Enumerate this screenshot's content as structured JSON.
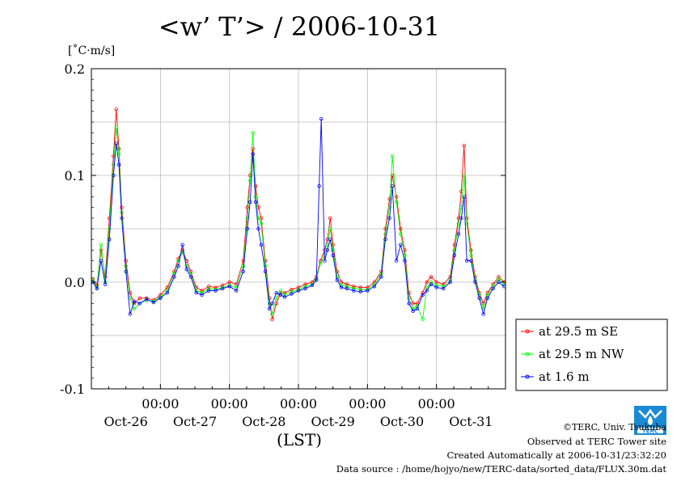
{
  "chart_data": {
    "type": "line",
    "title": "<w’ T’> / 2006-10-31",
    "unit": "[˚C·m/s]",
    "xlabel": "(LST)",
    "ylim": [
      -0.1,
      0.2
    ],
    "y_ticks": [
      -0.1,
      0.0,
      0.1,
      0.2
    ],
    "y_tick_labels": [
      "-0.1",
      "0.0",
      "0.1",
      "0.2"
    ],
    "xlim": [
      0,
      6
    ],
    "x_time_ticks": [
      1.0,
      2.0,
      3.0,
      4.0,
      5.0
    ],
    "x_time_tick_label": "00:00",
    "date_labels": [
      {
        "x": 0.5,
        "label": "Oct-26"
      },
      {
        "x": 1.5,
        "label": "Oct-27"
      },
      {
        "x": 2.5,
        "label": "Oct-28"
      },
      {
        "x": 3.5,
        "label": "Oct-29"
      },
      {
        "x": 4.5,
        "label": "Oct-30"
      },
      {
        "x": 5.5,
        "label": "Oct-31"
      }
    ],
    "grid": true,
    "legend_position": "right",
    "series": [
      {
        "name": "at 29.5 m SE",
        "color": "#ff0000",
        "points": [
          [
            0.02,
            0.003
          ],
          [
            0.08,
            -0.003
          ],
          [
            0.14,
            0.03
          ],
          [
            0.2,
            0.005
          ],
          [
            0.26,
            0.06
          ],
          [
            0.32,
            0.118
          ],
          [
            0.36,
            0.162
          ],
          [
            0.4,
            0.125
          ],
          [
            0.44,
            0.07
          ],
          [
            0.5,
            0.02
          ],
          [
            0.56,
            -0.01
          ],
          [
            0.62,
            -0.02
          ],
          [
            0.7,
            -0.015
          ],
          [
            0.8,
            -0.015
          ],
          [
            0.9,
            -0.017
          ],
          [
            1.0,
            -0.012
          ],
          [
            1.1,
            -0.005
          ],
          [
            1.2,
            0.01
          ],
          [
            1.26,
            0.022
          ],
          [
            1.32,
            0.03
          ],
          [
            1.38,
            0.02
          ],
          [
            1.44,
            0.01
          ],
          [
            1.52,
            -0.005
          ],
          [
            1.6,
            -0.008
          ],
          [
            1.7,
            -0.004
          ],
          [
            1.8,
            -0.005
          ],
          [
            1.9,
            -0.003
          ],
          [
            2.0,
            0.0
          ],
          [
            2.1,
            -0.002
          ],
          [
            2.2,
            0.02
          ],
          [
            2.26,
            0.07
          ],
          [
            2.3,
            0.1
          ],
          [
            2.34,
            0.125
          ],
          [
            2.38,
            0.09
          ],
          [
            2.42,
            0.07
          ],
          [
            2.46,
            0.06
          ],
          [
            2.52,
            0.02
          ],
          [
            2.58,
            -0.015
          ],
          [
            2.62,
            -0.035
          ],
          [
            2.68,
            -0.02
          ],
          [
            2.74,
            -0.01
          ],
          [
            2.8,
            -0.01
          ],
          [
            2.9,
            -0.007
          ],
          [
            3.0,
            -0.005
          ],
          [
            3.1,
            -0.002
          ],
          [
            3.2,
            0.0
          ],
          [
            3.26,
            0.005
          ],
          [
            3.32,
            0.02
          ],
          [
            3.38,
            0.03
          ],
          [
            3.42,
            0.04
          ],
          [
            3.46,
            0.06
          ],
          [
            3.5,
            0.035
          ],
          [
            3.56,
            0.01
          ],
          [
            3.62,
            0.0
          ],
          [
            3.7,
            -0.002
          ],
          [
            3.8,
            -0.004
          ],
          [
            3.9,
            -0.005
          ],
          [
            4.0,
            -0.005
          ],
          [
            4.1,
            0.0
          ],
          [
            4.2,
            0.01
          ],
          [
            4.26,
            0.05
          ],
          [
            4.32,
            0.078
          ],
          [
            4.36,
            0.1
          ],
          [
            4.42,
            0.08
          ],
          [
            4.48,
            0.05
          ],
          [
            4.54,
            0.03
          ],
          [
            4.6,
            -0.01
          ],
          [
            4.66,
            -0.02
          ],
          [
            4.72,
            -0.02
          ],
          [
            4.8,
            -0.01
          ],
          [
            4.86,
            0.0
          ],
          [
            4.92,
            0.005
          ],
          [
            5.0,
            0.0
          ],
          [
            5.1,
            -0.002
          ],
          [
            5.2,
            0.005
          ],
          [
            5.26,
            0.035
          ],
          [
            5.32,
            0.06
          ],
          [
            5.36,
            0.085
          ],
          [
            5.4,
            0.128
          ],
          [
            5.44,
            0.06
          ],
          [
            5.5,
            0.03
          ],
          [
            5.56,
            0.005
          ],
          [
            5.62,
            -0.01
          ],
          [
            5.68,
            -0.02
          ],
          [
            5.74,
            -0.01
          ],
          [
            5.82,
            -0.002
          ],
          [
            5.9,
            0.005
          ],
          [
            5.98,
            0.0
          ]
        ]
      },
      {
        "name": "at 29.5 m NW",
        "color": "#00ff00",
        "points": [
          [
            0.02,
            0.002
          ],
          [
            0.08,
            -0.005
          ],
          [
            0.14,
            0.035
          ],
          [
            0.2,
            0.0
          ],
          [
            0.26,
            0.05
          ],
          [
            0.32,
            0.11
          ],
          [
            0.36,
            0.145
          ],
          [
            0.4,
            0.12
          ],
          [
            0.44,
            0.065
          ],
          [
            0.5,
            0.015
          ],
          [
            0.56,
            -0.015
          ],
          [
            0.62,
            -0.025
          ],
          [
            0.7,
            -0.02
          ],
          [
            0.8,
            -0.017
          ],
          [
            0.9,
            -0.018
          ],
          [
            1.0,
            -0.014
          ],
          [
            1.1,
            -0.008
          ],
          [
            1.2,
            0.008
          ],
          [
            1.26,
            0.02
          ],
          [
            1.32,
            0.028
          ],
          [
            1.38,
            0.015
          ],
          [
            1.44,
            0.008
          ],
          [
            1.52,
            -0.008
          ],
          [
            1.6,
            -0.01
          ],
          [
            1.7,
            -0.006
          ],
          [
            1.8,
            -0.007
          ],
          [
            1.9,
            -0.005
          ],
          [
            2.0,
            -0.003
          ],
          [
            2.1,
            -0.005
          ],
          [
            2.2,
            0.015
          ],
          [
            2.26,
            0.06
          ],
          [
            2.3,
            0.095
          ],
          [
            2.34,
            0.14
          ],
          [
            2.38,
            0.08
          ],
          [
            2.42,
            0.06
          ],
          [
            2.46,
            0.055
          ],
          [
            2.52,
            0.015
          ],
          [
            2.58,
            -0.02
          ],
          [
            2.62,
            -0.03
          ],
          [
            2.68,
            -0.015
          ],
          [
            2.74,
            -0.008
          ],
          [
            2.8,
            -0.012
          ],
          [
            2.9,
            -0.009
          ],
          [
            3.0,
            -0.007
          ],
          [
            3.1,
            -0.004
          ],
          [
            3.2,
            -0.002
          ],
          [
            3.26,
            0.003
          ],
          [
            3.32,
            0.018
          ],
          [
            3.38,
            0.025
          ],
          [
            3.42,
            0.035
          ],
          [
            3.46,
            0.05
          ],
          [
            3.5,
            0.03
          ],
          [
            3.56,
            0.005
          ],
          [
            3.62,
            -0.003
          ],
          [
            3.7,
            -0.004
          ],
          [
            3.8,
            -0.006
          ],
          [
            3.9,
            -0.007
          ],
          [
            4.0,
            -0.007
          ],
          [
            4.1,
            -0.002
          ],
          [
            4.2,
            0.008
          ],
          [
            4.26,
            0.045
          ],
          [
            4.32,
            0.07
          ],
          [
            4.36,
            0.118
          ],
          [
            4.42,
            0.075
          ],
          [
            4.48,
            0.045
          ],
          [
            4.54,
            0.025
          ],
          [
            4.6,
            -0.015
          ],
          [
            4.66,
            -0.025
          ],
          [
            4.72,
            -0.022
          ],
          [
            4.8,
            -0.035
          ],
          [
            4.86,
            -0.005
          ],
          [
            4.92,
            0.0
          ],
          [
            5.0,
            -0.003
          ],
          [
            5.1,
            -0.004
          ],
          [
            5.2,
            0.002
          ],
          [
            5.26,
            0.03
          ],
          [
            5.32,
            0.055
          ],
          [
            5.36,
            0.07
          ],
          [
            5.4,
            0.1
          ],
          [
            5.44,
            0.055
          ],
          [
            5.5,
            0.025
          ],
          [
            5.56,
            0.002
          ],
          [
            5.62,
            -0.012
          ],
          [
            5.68,
            -0.025
          ],
          [
            5.74,
            -0.012
          ],
          [
            5.82,
            -0.004
          ],
          [
            5.9,
            0.003
          ],
          [
            5.98,
            -0.002
          ]
        ]
      },
      {
        "name": "at 1.6 m",
        "color": "#0000ff",
        "points": [
          [
            0.02,
            0.0
          ],
          [
            0.08,
            -0.006
          ],
          [
            0.14,
            0.02
          ],
          [
            0.2,
            -0.002
          ],
          [
            0.26,
            0.04
          ],
          [
            0.32,
            0.1
          ],
          [
            0.36,
            0.13
          ],
          [
            0.4,
            0.11
          ],
          [
            0.44,
            0.06
          ],
          [
            0.5,
            0.01
          ],
          [
            0.56,
            -0.03
          ],
          [
            0.62,
            -0.018
          ],
          [
            0.7,
            -0.02
          ],
          [
            0.8,
            -0.016
          ],
          [
            0.9,
            -0.019
          ],
          [
            1.0,
            -0.015
          ],
          [
            1.1,
            -0.01
          ],
          [
            1.2,
            0.005
          ],
          [
            1.26,
            0.015
          ],
          [
            1.32,
            0.035
          ],
          [
            1.38,
            0.012
          ],
          [
            1.44,
            0.005
          ],
          [
            1.52,
            -0.01
          ],
          [
            1.6,
            -0.012
          ],
          [
            1.7,
            -0.008
          ],
          [
            1.8,
            -0.008
          ],
          [
            1.9,
            -0.006
          ],
          [
            2.0,
            -0.004
          ],
          [
            2.1,
            -0.008
          ],
          [
            2.2,
            0.01
          ],
          [
            2.26,
            0.05
          ],
          [
            2.3,
            0.075
          ],
          [
            2.34,
            0.12
          ],
          [
            2.38,
            0.075
          ],
          [
            2.42,
            0.05
          ],
          [
            2.46,
            0.035
          ],
          [
            2.52,
            0.01
          ],
          [
            2.58,
            -0.025
          ],
          [
            2.62,
            -0.02
          ],
          [
            2.68,
            -0.01
          ],
          [
            2.74,
            -0.012
          ],
          [
            2.8,
            -0.014
          ],
          [
            2.9,
            -0.011
          ],
          [
            3.0,
            -0.008
          ],
          [
            3.1,
            -0.006
          ],
          [
            3.2,
            -0.003
          ],
          [
            3.26,
            0.002
          ],
          [
            3.3,
            0.09
          ],
          [
            3.33,
            0.153
          ],
          [
            3.38,
            0.02
          ],
          [
            3.42,
            0.03
          ],
          [
            3.46,
            0.04
          ],
          [
            3.5,
            0.025
          ],
          [
            3.56,
            0.002
          ],
          [
            3.62,
            -0.005
          ],
          [
            3.7,
            -0.006
          ],
          [
            3.8,
            -0.008
          ],
          [
            3.9,
            -0.009
          ],
          [
            4.0,
            -0.008
          ],
          [
            4.1,
            -0.004
          ],
          [
            4.2,
            0.005
          ],
          [
            4.26,
            0.04
          ],
          [
            4.32,
            0.06
          ],
          [
            4.36,
            0.09
          ],
          [
            4.42,
            0.02
          ],
          [
            4.48,
            0.035
          ],
          [
            4.54,
            0.02
          ],
          [
            4.6,
            -0.02
          ],
          [
            4.66,
            -0.027
          ],
          [
            4.72,
            -0.025
          ],
          [
            4.8,
            -0.012
          ],
          [
            4.86,
            -0.008
          ],
          [
            4.92,
            -0.002
          ],
          [
            5.0,
            -0.005
          ],
          [
            5.1,
            -0.006
          ],
          [
            5.2,
            0.0
          ],
          [
            5.26,
            0.025
          ],
          [
            5.32,
            0.045
          ],
          [
            5.36,
            0.06
          ],
          [
            5.4,
            0.08
          ],
          [
            5.44,
            0.02
          ],
          [
            5.5,
            0.02
          ],
          [
            5.56,
            0.0
          ],
          [
            5.62,
            -0.015
          ],
          [
            5.68,
            -0.03
          ],
          [
            5.74,
            -0.015
          ],
          [
            5.82,
            -0.006
          ],
          [
            5.9,
            0.0
          ],
          [
            5.98,
            -0.004
          ]
        ]
      }
    ]
  },
  "footer": {
    "copyright": "©TERC, Univ. Tsukuba",
    "observed": "Observed at TERC Tower site",
    "created": "Created Automatically at 2006-10-31/23:32:20",
    "source": "Data source : /home/hojyo/new/TERC-data/sorted_data/FLUX.30m.dat"
  },
  "logo": {
    "text": "TERC",
    "color": "#1a8ad4"
  }
}
